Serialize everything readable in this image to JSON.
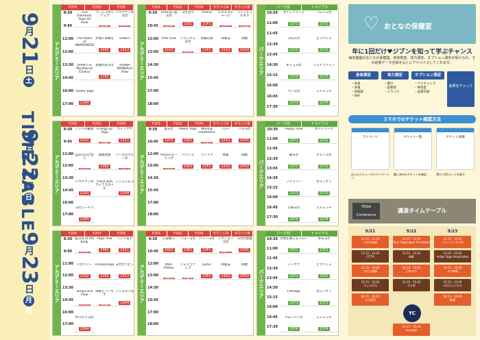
{
  "title": "TIME TABLE",
  "days": [
    {
      "date": "9",
      "unit": "月",
      "day": "21",
      "unit2": "日",
      "dow": "土"
    },
    {
      "date": "9",
      "unit": "月",
      "day": "22",
      "unit2": "日",
      "dow": "日"
    },
    {
      "date": "9",
      "unit": "月",
      "day": "23",
      "unit2": "日",
      "dow": "月祝"
    }
  ],
  "areas": {
    "academy": "アカデミーエリア",
    "park": "パークエリア"
  },
  "rooms_left": [
    "F205",
    "F203",
    "F206"
  ],
  "rooms_mid": [
    "F201",
    "F202",
    "F204",
    "ラウンジA",
    "ラウンジB"
  ],
  "rooms_right": [
    "パーク前",
    "トライアル"
  ],
  "times_left": [
    "8:30",
    "9:45",
    "11:00",
    "12:00",
    "13:30",
    "14:45",
    "16:00",
    "17:00"
  ],
  "times_mid": [
    "9:30",
    "10:45",
    "12:00",
    "13:00",
    "14:30",
    "15:45",
    "17:00",
    "18:00"
  ],
  "times_right": [
    "10:30",
    "11:00",
    "11:45",
    "12:30",
    "13:45",
    "14:30",
    "15:15",
    "16:00",
    "16:45",
    "17:30"
  ],
  "sessions_day1": [
    {
      "name": "Five Elements Yoga All level",
      "code": "21A1"
    },
    {
      "name": "ラージスキルアップ",
      "code": "21B1"
    },
    {
      "name": "シヴァナンダヨガ",
      "code": "21C1"
    },
    {
      "name": "The Power of AWARENESS",
      "code": "21A2"
    },
    {
      "name": "大地に深根を",
      "code": "21B2"
    },
    {
      "name": "SHAKTI",
      "code": "21C2"
    },
    {
      "name": "SHAKTI & Myofascial Chakra",
      "code": "21A3"
    },
    {
      "name": "太陽の光ヨガ",
      "code": "21B3"
    },
    {
      "name": "ASANA MANDALA Flow",
      "code": "21A4"
    },
    {
      "name": "Odaka Yoga",
      "code": "21B4"
    }
  ],
  "sessions_day1_mid": [
    {
      "name": "Yinfinity 陰ヨガ",
      "code": "21D1"
    },
    {
      "name": "ヨガ哲学",
      "code": "21E1"
    },
    {
      "name": "Ohana",
      "code": "21F1"
    },
    {
      "name": "ヒエルゴチャージ",
      "code": "21G1"
    },
    {
      "name": "マインドフルネス",
      "code": "21H1"
    },
    {
      "name": "Arte Flow",
      "code": "21D2"
    },
    {
      "name": "リラックスヨガ",
      "code": "21E2"
    },
    {
      "name": "太陽礼拝",
      "code": "21F2"
    },
    {
      "name": "呼吸法",
      "code": "21G2"
    },
    {
      "name": "瞑想",
      "code": "21H2"
    }
  ],
  "sessions_day1_park": [
    {
      "name": "ボディバランス",
      "code": "21Y1"
    },
    {
      "name": "アロマヨガ",
      "code": "21T1"
    },
    {
      "name": "ヨガ入門",
      "code": "21Y2"
    },
    {
      "name": "ピラティス",
      "code": "21T2"
    },
    {
      "name": "キッズヨガ",
      "code": "21Y3"
    },
    {
      "name": "リストラティブ",
      "code": "21T3"
    },
    {
      "name": "ペアヨガ",
      "code": "21Y4"
    },
    {
      "name": "ストレッチ",
      "code": "21T4"
    }
  ],
  "sessions_day2": [
    {
      "name": "インドの叡智",
      "code": "22A1"
    },
    {
      "name": "Energy up Yoga",
      "code": "22B1"
    },
    {
      "name": "ヴィンヤサ",
      "code": "22C1"
    },
    {
      "name": "自分と向き合う",
      "code": "22A2"
    },
    {
      "name": "姿勢改善",
      "code": "22B2"
    },
    {
      "name": "アーユルヴェーダ",
      "code": "22C2"
    },
    {
      "name": "シヴァナンダ",
      "code": "22A3"
    },
    {
      "name": "YOGA with ライフスタイル",
      "code": "22B3"
    },
    {
      "name": "ノンストレス",
      "code": "22A4"
    },
    {
      "name": "ヨガニードラ",
      "code": "22B4"
    }
  ],
  "sessions_day2_mid": [
    {
      "name": "陰ヨガ",
      "code": "22D1"
    },
    {
      "name": "Power Yoga",
      "code": "22E1"
    },
    {
      "name": "Moving meditation",
      "code": "22F1"
    },
    {
      "name": "フロー",
      "code": "22G1"
    },
    {
      "name": "ハタヨガ",
      "code": "22H1"
    },
    {
      "name": "YOGA×ヒーリング",
      "code": "22D2"
    },
    {
      "name": "バランス",
      "code": "22E2"
    },
    {
      "name": "マントラ",
      "code": "22F2"
    },
    {
      "name": "呼吸",
      "code": "22G2"
    },
    {
      "name": "瞑想",
      "code": "22H2"
    }
  ],
  "sessions_day2_park": [
    {
      "name": "Happy Flow",
      "code": "22Y1"
    },
    {
      "name": "ボディワーク",
      "code": "22T1"
    },
    {
      "name": "朝ヨガ",
      "code": "22Y2"
    },
    {
      "name": "チェアヨガ",
      "code": "22T2"
    },
    {
      "name": "ファミリー",
      "code": "22Y3"
    },
    {
      "name": "セルフケア",
      "code": "22T3"
    },
    {
      "name": "夕陽ヨガ",
      "code": "22Y4"
    },
    {
      "name": "ストレッチ",
      "code": "22T4"
    }
  ],
  "sessions_day3": [
    {
      "name": "陰ヨガ of the body",
      "code": "23A1"
    },
    {
      "name": "Yoga Flow",
      "code": "23B1"
    },
    {
      "name": "インド哲学",
      "code": "23C1"
    },
    {
      "name": "リカバリー",
      "code": "23A2"
    },
    {
      "name": "VinyasaYoga",
      "code": "23B2"
    },
    {
      "name": "ヨガセラピー",
      "code": "23C2"
    },
    {
      "name": "Tempo and Flow",
      "code": "23A3"
    },
    {
      "name": "呼吸とアーサナ",
      "code": "23B3"
    },
    {
      "name": "アシュタンガ",
      "code": "23A4"
    },
    {
      "name": "ゆったりヨガ",
      "code": "23B4"
    }
  ],
  "sessions_day3_mid": [
    {
      "name": "心身整う",
      "code": "23D1"
    },
    {
      "name": "フローヨガ",
      "code": "23E1"
    },
    {
      "name": "パワーヨガ",
      "code": "23F1"
    },
    {
      "name": "アクションヨガ",
      "code": "23G1"
    },
    {
      "name": "ヨガの智慧",
      "code": "23H1"
    },
    {
      "name": "Mohi Pilates",
      "code": "23D2"
    },
    {
      "name": "リストラティブ",
      "code": "23E2"
    },
    {
      "name": "Joyful",
      "code": "23F2"
    },
    {
      "name": "呼吸法",
      "code": "23G2"
    },
    {
      "name": "瞑想",
      "code": "23H2"
    }
  ],
  "sessions_day3_park": [
    {
      "name": "大地を感じるフロー",
      "code": "23Y1"
    },
    {
      "name": "ゆるヨガ",
      "code": "23T1"
    },
    {
      "name": "アーサナ",
      "code": "23Y2"
    },
    {
      "name": "ピラティス",
      "code": "23T2"
    },
    {
      "name": "LifeYoga",
      "code": "23Y3"
    },
    {
      "name": "セルフケア",
      "code": "23T3"
    },
    {
      "name": "クロージング",
      "code": "23Y4"
    },
    {
      "name": "ストレッチ",
      "code": "23T4"
    }
  ],
  "hoken": {
    "title": "おとなの保健室",
    "sub": "保健室"
  },
  "chance": {
    "title": "年に1回だけ♥ジブンを知って学ぶチャンス",
    "desc": "毎年開催のおとなの保健室。身体検査、体力測定、オプション測定が受けられ、その結果データ全体をもとにアドバイスしてくれます。"
  },
  "measures": [
    {
      "label": "身体測定",
      "items": "・身長\n・体重\n・体脂肪\n・BMI"
    },
    {
      "label": "体力測定",
      "items": "・握力\n・柔軟性\n・バランス"
    },
    {
      "label": "オプション測定",
      "items": "・ベジチェック\n・骨密度\n・血管年齢"
    }
  ],
  "result_label": "結果をチェック",
  "phone_section": {
    "title": "スマホでのチケット確認方法"
  },
  "phones": [
    {
      "label": "マイページ",
      "desc": "右上のメニューからマイページへ"
    },
    {
      "label": "チケット一覧",
      "desc": "購入済みのチケットを確認"
    },
    {
      "label": "チケット詳細",
      "desc": "受付でQRコードを提示"
    }
  ],
  "lecture": {
    "title": "講演タイムテーブル",
    "banner": "YOGA Conference"
  },
  "lecture_days": [
    "9/21",
    "9/22",
    "9/23"
  ],
  "lectures": [
    [
      {
        "time": "12:15 - 12:45",
        "name": "ヨガの未来"
      },
      {
        "time": "13:15 - 13:45",
        "name": "CITTA"
      },
      {
        "time": "14:15 - 14:45",
        "name": "ヨガと健康"
      },
      {
        "time": "15:15 - 15:45",
        "name": "ウェルネス"
      },
      {
        "time": "16:15 - 16:45",
        "name": "ヨガ哲学"
      }
    ],
    [
      {
        "time": "12:15 - 12:45",
        "name": "Pure Yoga Japan Fondation"
      },
      {
        "time": "13:15 - 13:45",
        "name": "体幹"
      },
      {
        "time": "14:15 - 14:45",
        "name": "日本ヨガ"
      },
      {
        "time": "15:15 - 15:45",
        "name": "カラダ"
      },
      {
        "time": "16:15 - 16:45",
        "name": "anyogiai"
      }
    ],
    [
      {
        "time": "12:15 - 12:45",
        "name": "フリーランスヨガ"
      },
      {
        "time": "13:15 - 13:45",
        "name": "Indian Yoga Association"
      },
      {
        "time": "14:15 - 14:45",
        "name": "ヨガ指導"
      },
      {
        "time": "15:15 - 15:45",
        "name": "ヨガとビジネス"
      },
      {
        "time": "16:15 - 16:45",
        "name": "瞑想"
      }
    ]
  ],
  "yc_badge": "YC"
}
